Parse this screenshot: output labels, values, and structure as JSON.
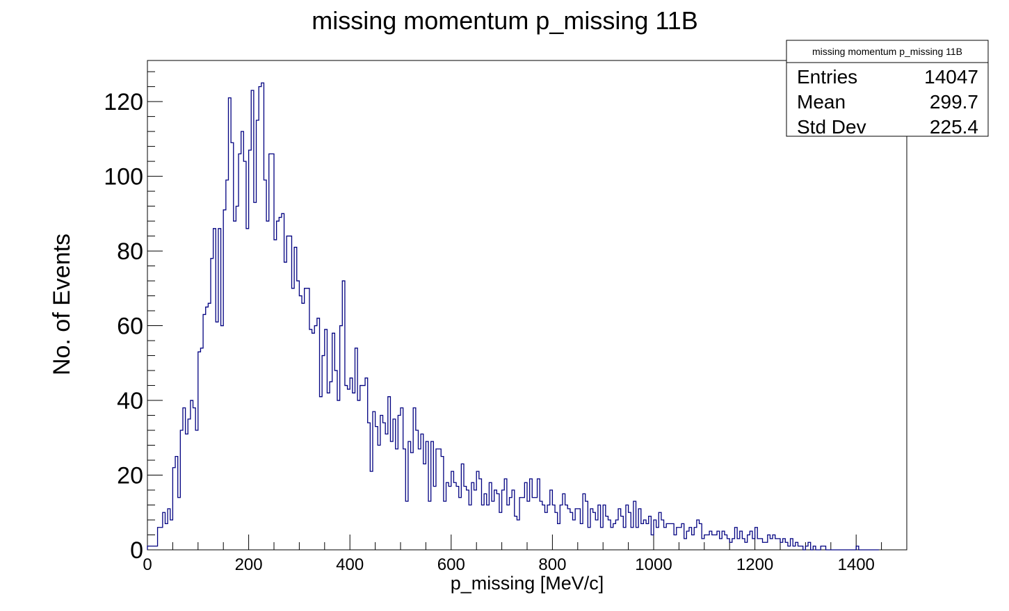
{
  "chart_data": {
    "type": "bar",
    "title": "missing momentum p_missing 11B",
    "xlabel": "p_missing [MeV/c]",
    "ylabel": "No. of Events",
    "xlim": [
      0,
      1500
    ],
    "ylim": [
      0,
      131
    ],
    "bin_width": 5,
    "x_ticks": [
      0,
      200,
      400,
      600,
      800,
      1000,
      1200,
      1400
    ],
    "y_ticks": [
      0,
      20,
      40,
      60,
      80,
      100,
      120
    ],
    "grid": false,
    "line_color": "#000080",
    "stats_box": {
      "title": "missing momentum p_missing 11B",
      "placement": "top-right",
      "rows": [
        {
          "label": "Entries",
          "value": "14047"
        },
        {
          "label": "Mean",
          "value": "299.7"
        },
        {
          "label": "Std Dev",
          "value": "225.4"
        }
      ]
    },
    "series": [
      {
        "values": [
          1,
          1,
          1,
          1,
          6,
          6,
          10,
          7,
          11,
          8,
          22,
          25,
          14,
          32,
          38,
          31,
          35,
          40,
          38,
          32,
          53,
          54,
          63,
          65,
          66,
          78,
          86,
          61,
          86,
          60,
          91,
          99,
          121,
          109,
          88,
          92,
          106,
          112,
          104,
          86,
          107,
          123,
          93,
          115,
          124,
          125,
          99,
          88,
          106,
          106,
          83,
          88,
          89,
          90,
          77,
          84,
          84,
          70,
          81,
          72,
          68,
          66,
          70,
          70,
          59,
          58,
          60,
          62,
          41,
          52,
          59,
          42,
          45,
          58,
          48,
          40,
          60,
          72,
          44,
          43,
          46,
          42,
          54,
          40,
          44,
          44,
          46,
          34,
          21,
          37,
          33,
          28,
          36,
          34,
          31,
          41,
          29,
          35,
          27,
          36,
          38,
          27,
          13,
          29,
          26,
          38,
          32,
          27,
          31,
          23,
          29,
          13,
          29,
          17,
          27,
          27,
          25,
          13,
          18,
          17,
          21,
          18,
          17,
          14,
          23,
          17,
          16,
          12,
          18,
          16,
          21,
          19,
          12,
          15,
          12,
          18,
          13,
          16,
          15,
          10,
          16,
          19,
          12,
          14,
          16,
          9,
          8,
          14,
          14,
          18,
          13,
          19,
          14,
          14,
          19,
          13,
          12,
          10,
          12,
          16,
          12,
          10,
          7,
          12,
          15,
          12,
          11,
          10,
          8,
          11,
          11,
          7,
          15,
          13,
          6,
          11,
          10,
          8,
          12,
          6,
          12,
          9,
          8,
          6,
          7,
          8,
          11,
          9,
          6,
          12,
          10,
          6,
          13,
          6,
          11,
          7,
          8,
          7,
          9,
          4,
          8,
          6,
          10,
          8,
          6,
          7,
          7,
          7,
          4,
          6,
          6,
          7,
          3,
          5,
          6,
          4,
          6,
          8,
          7,
          3,
          4,
          4,
          5,
          4,
          4,
          5,
          3,
          5,
          4,
          3,
          2,
          3,
          6,
          3,
          5,
          3,
          2,
          4,
          5,
          3,
          6,
          3,
          3,
          2,
          2,
          4,
          3,
          4,
          3,
          3,
          2,
          3,
          2,
          1,
          3,
          1,
          2,
          1,
          1,
          0,
          1,
          2,
          0,
          1,
          0,
          0,
          1,
          1,
          0,
          0,
          0,
          0,
          0,
          0,
          0,
          0,
          0,
          0,
          0,
          0,
          1,
          0,
          0,
          0,
          0,
          0,
          0,
          0,
          0
        ]
      }
    ]
  }
}
